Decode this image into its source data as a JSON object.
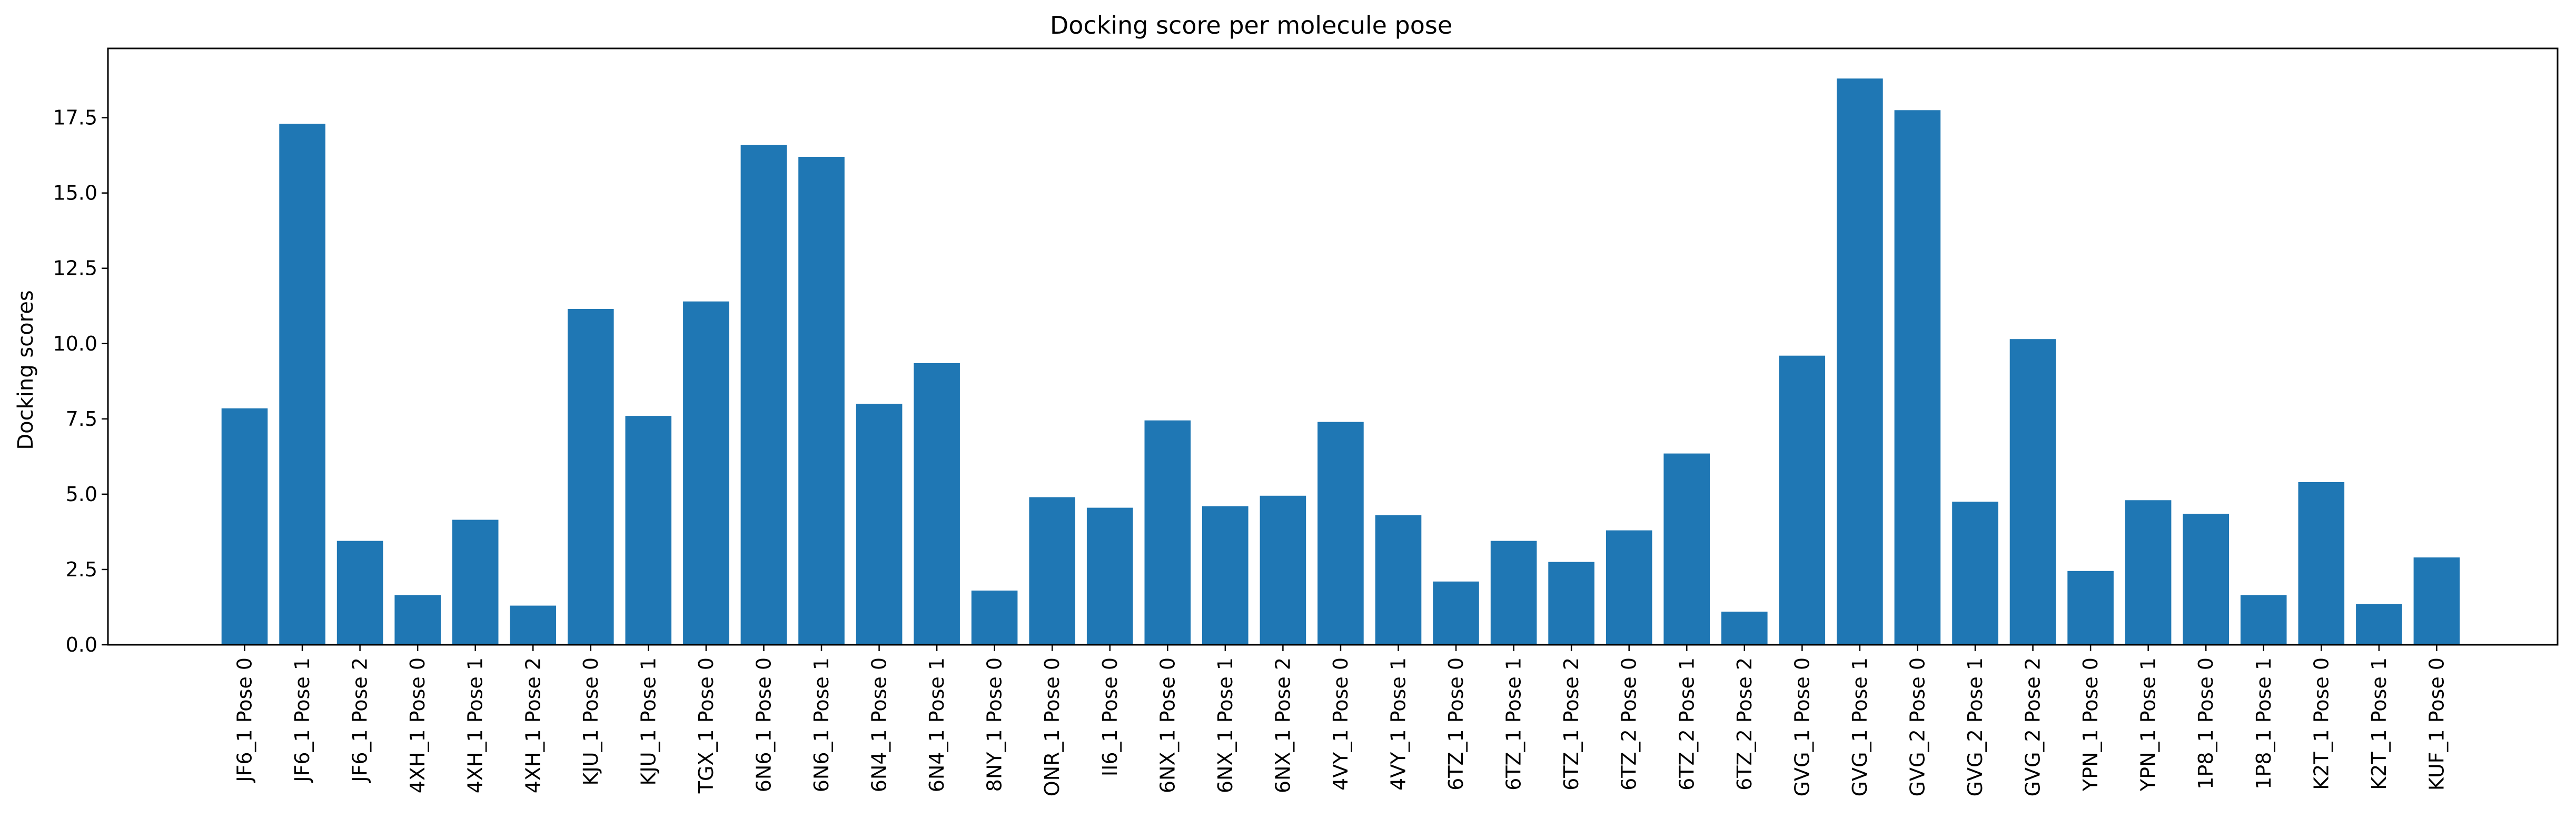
{
  "chart_data": {
    "type": "bar",
    "title": "Docking score per molecule pose",
    "xlabel": "",
    "ylabel": "Docking scores",
    "ylim": [
      0,
      19.8
    ],
    "yticks": [
      0.0,
      2.5,
      5.0,
      7.5,
      10.0,
      12.5,
      15.0,
      17.5
    ],
    "ytick_labels": [
      "0.0",
      "2.5",
      "5.0",
      "7.5",
      "10.0",
      "12.5",
      "15.0",
      "17.5"
    ],
    "bar_color": "#1f77b4",
    "grid": false,
    "legend": "none",
    "categories": [
      "JF6_1 Pose 0",
      "JF6_1 Pose 1",
      "JF6_1 Pose 2",
      "4XH_1 Pose 0",
      "4XH_1 Pose 1",
      "4XH_1 Pose 2",
      "KJU_1 Pose 0",
      "KJU_1 Pose 1",
      "TGX_1 Pose 0",
      "6N6_1 Pose 0",
      "6N6_1 Pose 1",
      "6N4_1 Pose 0",
      "6N4_1 Pose 1",
      "8NY_1 Pose 0",
      "ONR_1 Pose 0",
      "II6_1 Pose 0",
      "6NX_1 Pose 0",
      "6NX_1 Pose 1",
      "6NX_1 Pose 2",
      "4VY_1 Pose 0",
      "4VY_1 Pose 1",
      "6TZ_1 Pose 0",
      "6TZ_1 Pose 1",
      "6TZ_1 Pose 2",
      "6TZ_2 Pose 0",
      "6TZ_2 Pose 1",
      "6TZ_2 Pose 2",
      "GVG_1 Pose 0",
      "GVG_1 Pose 1",
      "GVG_2 Pose 0",
      "GVG_2 Pose 1",
      "GVG_2 Pose 2",
      "YPN_1 Pose 0",
      "YPN_1 Pose 1",
      "1P8_1 Pose 0",
      "1P8_1 Pose 1",
      "K2T_1 Pose 0",
      "K2T_1 Pose 1",
      "KUF_1 Pose 0"
    ],
    "values": [
      7.85,
      17.3,
      3.45,
      1.65,
      4.15,
      1.3,
      11.15,
      7.6,
      11.4,
      16.6,
      16.2,
      8.0,
      9.35,
      1.8,
      4.9,
      4.55,
      7.45,
      4.6,
      4.95,
      7.4,
      4.3,
      2.1,
      3.45,
      2.75,
      3.8,
      6.35,
      1.1,
      9.6,
      18.8,
      17.75,
      4.75,
      10.15,
      2.45,
      4.8,
      4.35,
      1.65,
      5.4,
      1.35,
      2.9
    ]
  }
}
